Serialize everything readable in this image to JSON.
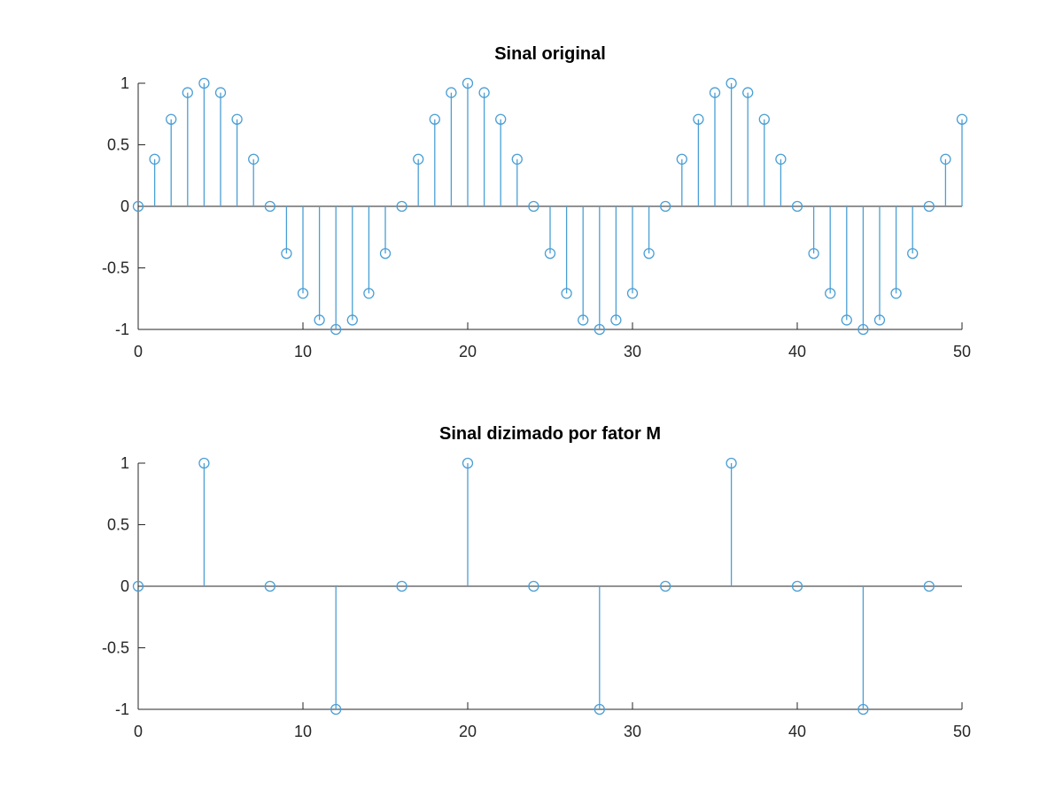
{
  "chart_data": [
    {
      "type": "stem",
      "title": "Sinal original",
      "xlabel": "",
      "ylabel": "",
      "xlim": [
        0,
        50
      ],
      "ylim": [
        -1,
        1
      ],
      "xticks": [
        0,
        10,
        20,
        30,
        40,
        50
      ],
      "xtick_labels": [
        "0",
        "10",
        "20",
        "30",
        "40",
        "50"
      ],
      "yticks": [
        -1,
        -0.5,
        0,
        0.5,
        1
      ],
      "ytick_labels": [
        "-1",
        "-0.5",
        "0",
        "0.5",
        "1"
      ],
      "grid": false,
      "legend": "none",
      "color": "#4a9fd5",
      "x": [
        0,
        1,
        2,
        3,
        4,
        5,
        6,
        7,
        8,
        9,
        10,
        11,
        12,
        13,
        14,
        15,
        16,
        17,
        18,
        19,
        20,
        21,
        22,
        23,
        24,
        25,
        26,
        27,
        28,
        29,
        30,
        31,
        32,
        33,
        34,
        35,
        36,
        37,
        38,
        39,
        40,
        41,
        42,
        43,
        44,
        45,
        46,
        47,
        48,
        49,
        50
      ],
      "y": [
        0,
        0.383,
        0.707,
        0.924,
        1,
        0.924,
        0.707,
        0.383,
        0,
        -0.383,
        -0.707,
        -0.924,
        -1,
        -0.924,
        -0.707,
        -0.383,
        0,
        0.383,
        0.707,
        0.924,
        1,
        0.924,
        0.707,
        0.383,
        0,
        -0.383,
        -0.707,
        -0.924,
        -1,
        -0.924,
        -0.707,
        -0.383,
        0,
        0.383,
        0.707,
        0.924,
        1,
        0.924,
        0.707,
        0.383,
        0,
        -0.383,
        -0.707,
        -0.924,
        -1,
        -0.924,
        -0.707,
        -0.383,
        0,
        0.383,
        0.707
      ]
    },
    {
      "type": "stem",
      "title": "Sinal dizimado por fator M",
      "xlabel": "",
      "ylabel": "",
      "xlim": [
        0,
        50
      ],
      "ylim": [
        -1,
        1
      ],
      "xticks": [
        0,
        10,
        20,
        30,
        40,
        50
      ],
      "xtick_labels": [
        "0",
        "10",
        "20",
        "30",
        "40",
        "50"
      ],
      "yticks": [
        -1,
        -0.5,
        0,
        0.5,
        1
      ],
      "ytick_labels": [
        "-1",
        "-0.5",
        "0",
        "0.5",
        "1"
      ],
      "grid": false,
      "legend": "none",
      "color": "#4a9fd5",
      "x": [
        0,
        4,
        8,
        12,
        16,
        20,
        24,
        28,
        32,
        36,
        40,
        44,
        48
      ],
      "y": [
        0,
        1,
        0,
        -1,
        0,
        1,
        0,
        -1,
        0,
        1,
        0,
        -1,
        0
      ]
    }
  ]
}
